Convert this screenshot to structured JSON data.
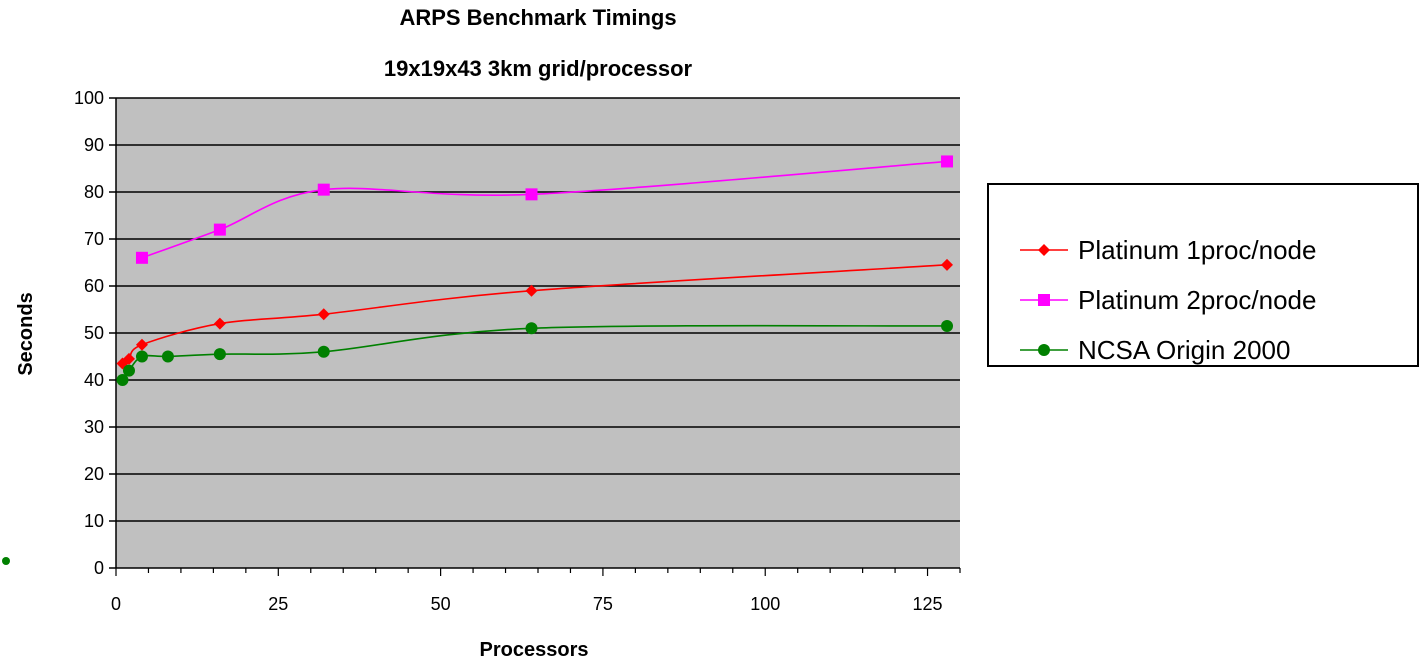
{
  "chart_data": {
    "type": "line",
    "title": "ARPS Benchmark Timings",
    "subtitle": "19x19x43 3km grid/processor",
    "xlabel": "Processors",
    "ylabel": "Seconds",
    "xlim": [
      0,
      130
    ],
    "ylim": [
      0,
      100
    ],
    "xticks": [
      0,
      25,
      50,
      75,
      100,
      125
    ],
    "yticks": [
      0,
      10,
      20,
      30,
      40,
      50,
      60,
      70,
      80,
      90,
      100
    ],
    "grid": "horizontal",
    "legend_position": "right",
    "series": [
      {
        "name": "Platinum 1proc/node",
        "color": "#ff0000",
        "marker": "diamond",
        "x": [
          1,
          2,
          4,
          16,
          32,
          64,
          128
        ],
        "values": [
          43.5,
          44.5,
          47.5,
          52,
          54,
          59,
          64.5
        ]
      },
      {
        "name": "Platinum 2proc/node",
        "color": "#ff00ff",
        "marker": "square",
        "x": [
          4,
          16,
          32,
          64,
          128
        ],
        "values": [
          66,
          72,
          80.5,
          79.5,
          86.5
        ]
      },
      {
        "name": "NCSA Origin 2000",
        "color": "#008000",
        "marker": "circle",
        "x": [
          1,
          2,
          4,
          8,
          16,
          32,
          64,
          128
        ],
        "values": [
          40,
          42,
          45,
          45,
          45.5,
          46,
          51,
          51.5
        ]
      }
    ]
  }
}
